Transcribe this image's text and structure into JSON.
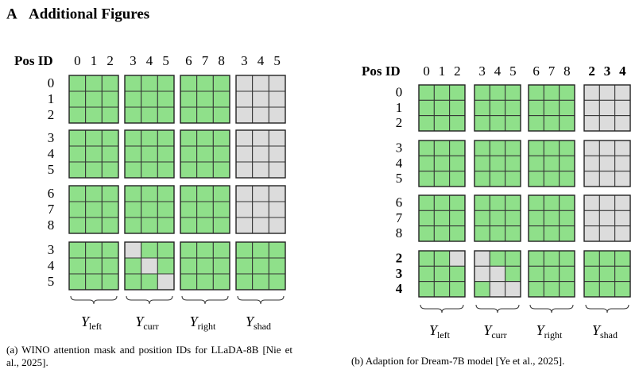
{
  "section": {
    "number": "A",
    "title": "Additional Figures"
  },
  "panels": [
    {
      "row_header": "Pos ID",
      "column_ids": [
        0,
        1,
        2,
        3,
        4,
        5,
        6,
        7,
        8,
        3,
        4,
        5
      ],
      "row_ids": [
        0,
        1,
        2,
        3,
        4,
        5,
        6,
        7,
        8,
        3,
        4,
        5
      ],
      "group_labels": [
        {
          "symbol": "Y",
          "subscript": "left"
        },
        {
          "symbol": "Y",
          "subscript": "curr"
        },
        {
          "symbol": "Y",
          "subscript": "right"
        },
        {
          "symbol": "Y",
          "subscript": "shad"
        }
      ],
      "caption": "(a) WINO attention mask and position IDs for LLaDA-8B [Nie et al., 2025]."
    },
    {
      "row_header": "Pos ID",
      "column_ids": [
        0,
        1,
        2,
        3,
        4,
        5,
        6,
        7,
        8,
        2,
        3,
        4
      ],
      "row_ids": [
        0,
        1,
        2,
        3,
        4,
        5,
        6,
        7,
        8,
        2,
        3,
        4
      ],
      "group_labels": [
        {
          "symbol": "Y",
          "subscript": "left"
        },
        {
          "symbol": "Y",
          "subscript": "curr"
        },
        {
          "symbol": "Y",
          "subscript": "right"
        },
        {
          "symbol": "Y",
          "subscript": "shad"
        }
      ],
      "caption": "(b) Adaption for Dream-7B model [Ye et al., 2025]."
    }
  ]
}
